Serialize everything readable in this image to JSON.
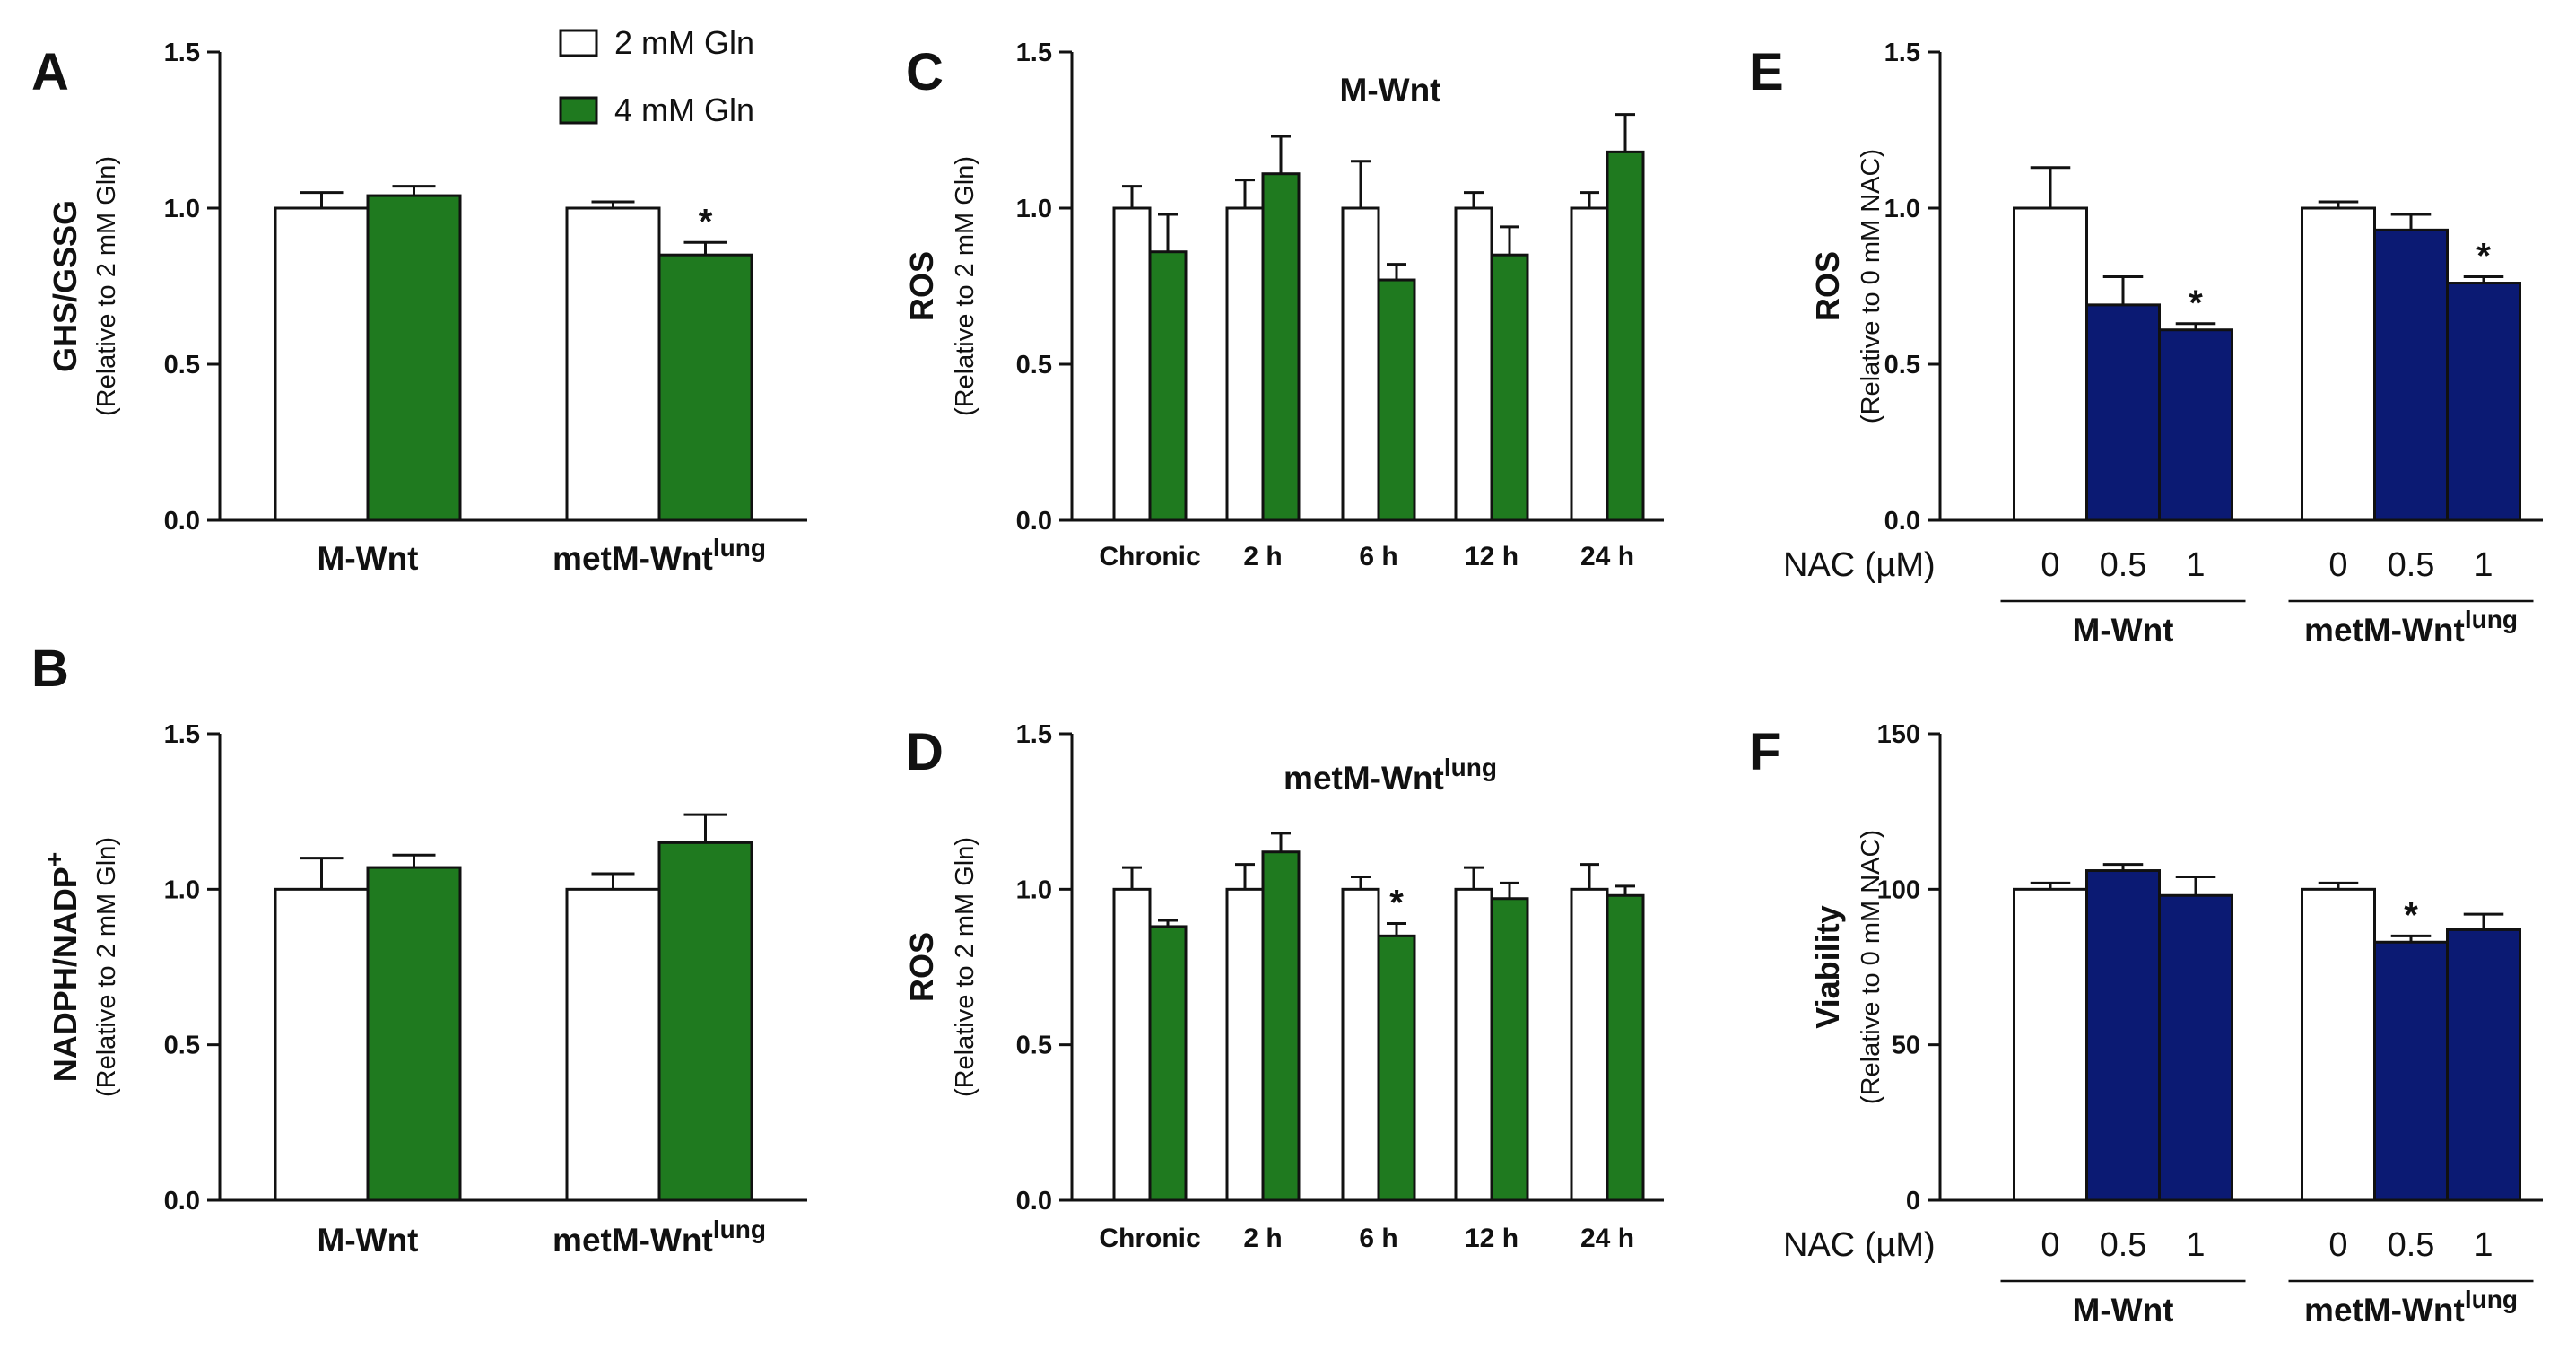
{
  "colors": {
    "white_bar": "#ffffff",
    "green_bar": "#1f7a1f",
    "navy_bar": "#0b1a73",
    "axis": "#111111"
  },
  "legend": [
    {
      "label": "2 mM Gln",
      "color": "#ffffff"
    },
    {
      "label": "4 mM Gln",
      "color": "#1f7a1f"
    }
  ],
  "nac_axis": {
    "label": "NAC (µM)",
    "doses": [
      "0",
      "0.5",
      "1"
    ]
  },
  "chart_data": [
    {
      "id": "A",
      "panel_label": "A",
      "type": "bar",
      "ylabel": "GHS/GSSG",
      "ylabel_sub": "(Relative to 2 mM Gln)",
      "ylim": [
        0,
        1.5
      ],
      "yticks": [
        "0.0",
        "0.5",
        "1.0",
        "1.5"
      ],
      "groups": [
        {
          "label": "M-Wnt",
          "label_sup": "",
          "values": [
            1.0,
            1.04
          ],
          "errors": [
            0.05,
            0.03
          ],
          "colors": [
            "#ffffff",
            "#1f7a1f"
          ],
          "stars": [
            "",
            ""
          ]
        },
        {
          "label": "metM-Wnt",
          "label_sup": "lung",
          "values": [
            1.0,
            0.85
          ],
          "errors": [
            0.02,
            0.04
          ],
          "colors": [
            "#ffffff",
            "#1f7a1f"
          ],
          "stars": [
            "",
            "*"
          ]
        }
      ]
    },
    {
      "id": "B",
      "panel_label": "B",
      "type": "bar",
      "ylabel": "NADPH/NADP",
      "ylabel_sup": "+",
      "ylabel_sub": "(Relative to 2 mM Gln)",
      "ylim": [
        0,
        1.5
      ],
      "yticks": [
        "0.0",
        "0.5",
        "1.0",
        "1.5"
      ],
      "groups": [
        {
          "label": "M-Wnt",
          "label_sup": "",
          "values": [
            1.0,
            1.07
          ],
          "errors": [
            0.1,
            0.04
          ],
          "colors": [
            "#ffffff",
            "#1f7a1f"
          ],
          "stars": [
            "",
            ""
          ]
        },
        {
          "label": "metM-Wnt",
          "label_sup": "lung",
          "values": [
            1.0,
            1.15
          ],
          "errors": [
            0.05,
            0.09
          ],
          "colors": [
            "#ffffff",
            "#1f7a1f"
          ],
          "stars": [
            "",
            ""
          ]
        }
      ]
    },
    {
      "id": "C",
      "panel_label": "C",
      "type": "bar",
      "title": "M-Wnt",
      "title_sup": "",
      "ylabel": "ROS",
      "ylabel_sub": "(Relative to 2 mM Gln)",
      "ylim": [
        0,
        1.5
      ],
      "yticks": [
        "0.0",
        "0.5",
        "1.0",
        "1.5"
      ],
      "groups": [
        {
          "label": "Chronic",
          "label_sup": "",
          "values": [
            1.0,
            0.86
          ],
          "errors": [
            0.07,
            0.12
          ],
          "colors": [
            "#ffffff",
            "#1f7a1f"
          ],
          "stars": [
            "",
            ""
          ]
        },
        {
          "label": "2 h",
          "label_sup": "",
          "values": [
            1.0,
            1.11
          ],
          "errors": [
            0.09,
            0.12
          ],
          "colors": [
            "#ffffff",
            "#1f7a1f"
          ],
          "stars": [
            "",
            ""
          ]
        },
        {
          "label": "6 h",
          "label_sup": "",
          "values": [
            1.0,
            0.77
          ],
          "errors": [
            0.15,
            0.05
          ],
          "colors": [
            "#ffffff",
            "#1f7a1f"
          ],
          "stars": [
            "",
            ""
          ]
        },
        {
          "label": "12 h",
          "label_sup": "",
          "values": [
            1.0,
            0.85
          ],
          "errors": [
            0.05,
            0.09
          ],
          "colors": [
            "#ffffff",
            "#1f7a1f"
          ],
          "stars": [
            "",
            ""
          ]
        },
        {
          "label": "24 h",
          "label_sup": "",
          "values": [
            1.0,
            1.18
          ],
          "errors": [
            0.05,
            0.12
          ],
          "colors": [
            "#ffffff",
            "#1f7a1f"
          ],
          "stars": [
            "",
            ""
          ]
        }
      ]
    },
    {
      "id": "D",
      "panel_label": "D",
      "type": "bar",
      "title": "metM-Wnt",
      "title_sup": "lung",
      "ylabel": "ROS",
      "ylabel_sub": "(Relative to 2 mM Gln)",
      "ylim": [
        0,
        1.5
      ],
      "yticks": [
        "0.0",
        "0.5",
        "1.0",
        "1.5"
      ],
      "groups": [
        {
          "label": "Chronic",
          "label_sup": "",
          "values": [
            1.0,
            0.88
          ],
          "errors": [
            0.07,
            0.02
          ],
          "colors": [
            "#ffffff",
            "#1f7a1f"
          ],
          "stars": [
            "",
            ""
          ]
        },
        {
          "label": "2 h",
          "label_sup": "",
          "values": [
            1.0,
            1.12
          ],
          "errors": [
            0.08,
            0.06
          ],
          "colors": [
            "#ffffff",
            "#1f7a1f"
          ],
          "stars": [
            "",
            ""
          ]
        },
        {
          "label": "6 h",
          "label_sup": "",
          "values": [
            1.0,
            0.85
          ],
          "errors": [
            0.04,
            0.04
          ],
          "colors": [
            "#ffffff",
            "#1f7a1f"
          ],
          "stars": [
            "",
            "*"
          ]
        },
        {
          "label": "12 h",
          "label_sup": "",
          "values": [
            1.0,
            0.97
          ],
          "errors": [
            0.07,
            0.05
          ],
          "colors": [
            "#ffffff",
            "#1f7a1f"
          ],
          "stars": [
            "",
            ""
          ]
        },
        {
          "label": "24 h",
          "label_sup": "",
          "values": [
            1.0,
            0.98
          ],
          "errors": [
            0.08,
            0.03
          ],
          "colors": [
            "#ffffff",
            "#1f7a1f"
          ],
          "stars": [
            "",
            ""
          ]
        }
      ]
    },
    {
      "id": "E",
      "panel_label": "E",
      "type": "bar",
      "ylabel": "ROS",
      "ylabel_sub": "(Relative to 0 mM NAC)",
      "ylim": [
        0,
        1.5
      ],
      "yticks": [
        "0.0",
        "0.5",
        "1.0",
        "1.5"
      ],
      "groups": [
        {
          "label": "M-Wnt",
          "label_sup": "",
          "values": [
            1.0,
            0.69,
            0.61
          ],
          "errors": [
            0.13,
            0.09,
            0.02
          ],
          "colors": [
            "#ffffff",
            "#0b1a73",
            "#0b1a73"
          ],
          "stars": [
            "",
            "",
            "*"
          ]
        },
        {
          "label": "metM-Wnt",
          "label_sup": "lung",
          "values": [
            1.0,
            0.93,
            0.76
          ],
          "errors": [
            0.02,
            0.05,
            0.02
          ],
          "colors": [
            "#ffffff",
            "#0b1a73",
            "#0b1a73"
          ],
          "stars": [
            "",
            "",
            "*"
          ]
        }
      ]
    },
    {
      "id": "F",
      "panel_label": "F",
      "type": "bar",
      "ylabel": "Viability",
      "ylabel_sub": "(Relative to 0 mM NAC)",
      "ylim": [
        0,
        150
      ],
      "yticks": [
        "0",
        "50",
        "100",
        "150"
      ],
      "groups": [
        {
          "label": "M-Wnt",
          "label_sup": "",
          "values": [
            100,
            106,
            98
          ],
          "errors": [
            2,
            2,
            6
          ],
          "colors": [
            "#ffffff",
            "#0b1a73",
            "#0b1a73"
          ],
          "stars": [
            "",
            "",
            ""
          ]
        },
        {
          "label": "metM-Wnt",
          "label_sup": "lung",
          "values": [
            100,
            83,
            87
          ],
          "errors": [
            2,
            2,
            5
          ],
          "colors": [
            "#ffffff",
            "#0b1a73",
            "#0b1a73"
          ],
          "stars": [
            "",
            "*",
            ""
          ]
        }
      ]
    }
  ]
}
